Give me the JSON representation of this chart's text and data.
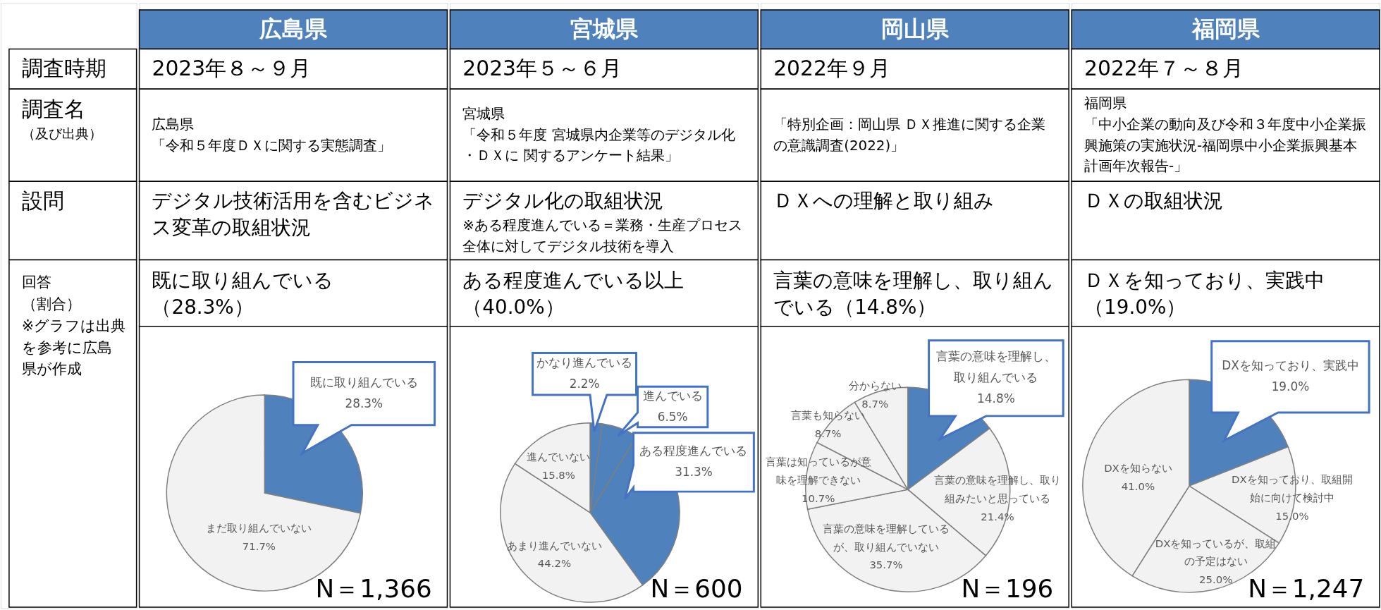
{
  "chart_data": [
    {
      "type": "other",
      "annotations": [
        "調査時期",
        "調査名",
        "（及び出典）",
        "設問",
        "回答",
        "（割合）",
        "※グラフは出典を参考に広島県が作成"
      ]
    },
    {
      "type": "pie",
      "title": "広島県",
      "categories": [
        "既に取り組んでいる",
        "まだ取り組んでいない"
      ],
      "values": [
        28.3,
        71.7
      ],
      "colors": [
        "#4f81bd",
        "#f2f2f2"
      ],
      "value_labels": [
        "28.3%",
        "71.7%"
      ],
      "annotations": [
        "2023年８～９月",
        "広島県",
        "「令和５年度ＤＸに関する実態調査」",
        "デジタル技術活用を含むビジネス変革の取組状況",
        "既に取り組んでいる（28.3%）",
        "N＝1,366"
      ]
    },
    {
      "type": "pie",
      "title": "宮城県",
      "categories": [
        "かなり進んでいる",
        "進んでいる",
        "ある程度進んでいる",
        "あまり進んでいない",
        "進んでいない"
      ],
      "values": [
        2.2,
        6.5,
        31.3,
        44.2,
        15.8
      ],
      "colors": [
        "#4f81bd",
        "#4f81bd",
        "#4f81bd",
        "#f2f2f2",
        "#f2f2f2"
      ],
      "value_labels": [
        "2.2%",
        "6.5%",
        "31.3%",
        "44.2%",
        "15.8%"
      ],
      "annotations": [
        "2023年５～６月",
        "宮城県",
        "「令和５年度 宮城県内企業等のデジタル化・ＤＸに 関するアンケート結果」",
        "デジタル化の取組状況",
        "※ある程度進んでいる＝業務・生産プロセス全体に対してデジタル技術を導入",
        "ある程度進んでいる以上（40.0%）",
        "N＝600"
      ]
    },
    {
      "type": "pie",
      "title": "岡山県",
      "categories": [
        "言葉の意味を理解し、取り組んでいる",
        "言葉の意味を理解し、取り組みたいと思っている",
        "言葉の意味を理解しているが、取り組んでいない",
        "言葉は知っているが意味を理解できない",
        "言葉も知らない",
        "分からない"
      ],
      "values": [
        14.8,
        21.4,
        35.7,
        10.7,
        8.7,
        8.7
      ],
      "colors": [
        "#4f81bd",
        "#f2f2f2",
        "#f2f2f2",
        "#f2f2f2",
        "#f2f2f2",
        "#f2f2f2"
      ],
      "value_labels": [
        "14.8%",
        "21.4%",
        "35.7%",
        "10.7%",
        "8.7%",
        "8.7%"
      ],
      "annotations": [
        "2022年９月",
        "「特別企画：岡山県 ＤＸ推進に関する企業の意識調査(2022)」",
        "ＤＸへの理解と取り組み",
        "言葉の意味を理解し、取り組んでいる（14.8%）",
        "N＝196"
      ]
    },
    {
      "type": "pie",
      "title": "福岡県",
      "categories": [
        "DXを知っており、実践中",
        "DXを知っており、取組開始に向けて検討中",
        "DXを知っているが、取組の予定はない",
        "DXを知らない"
      ],
      "values": [
        19.0,
        15.0,
        25.0,
        41.0
      ],
      "colors": [
        "#4f81bd",
        "#f2f2f2",
        "#f2f2f2",
        "#f2f2f2"
      ],
      "value_labels": [
        "19.0%",
        "15.0%",
        "25.0%",
        "41.0%"
      ],
      "annotations": [
        "2022年７～８月",
        "福岡県",
        "「中小企業の動向及び令和３年度中小企業振興施策の実施状況-福岡県中小企業振興基本計画年次報告-」",
        "ＤＸの取組状況",
        "ＤＸを知っており、実践中（19.0%）",
        "N＝1,247"
      ]
    }
  ]
}
